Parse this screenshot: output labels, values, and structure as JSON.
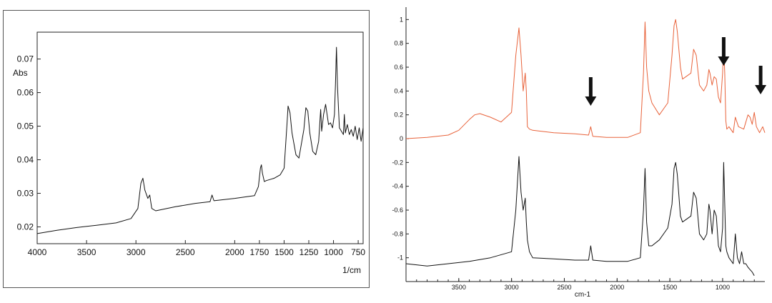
{
  "chart_data": [
    {
      "type": "line",
      "title": "",
      "xlabel": "1/cm",
      "ylabel": "Abs",
      "xlim": [
        4000,
        700
      ],
      "ylim": [
        0.015,
        0.078
      ],
      "x_reversed": true,
      "grid": false,
      "x_ticks": [
        "4000",
        "3500",
        "3000",
        "2500",
        "2000",
        "1750",
        "1500",
        "1250",
        "1000",
        "750"
      ],
      "x_tick_values": [
        4000,
        3500,
        3000,
        2500,
        2000,
        1750,
        1500,
        1250,
        1000,
        750
      ],
      "y_ticks": [
        "0.02",
        "0.03",
        "0.04",
        "0.05",
        "0.06",
        "0.07"
      ],
      "y_tick_values": [
        0.02,
        0.03,
        0.04,
        0.05,
        0.06,
        0.07
      ],
      "line_color": "#111111",
      "series": [
        {
          "x": [
            4000,
            3800,
            3600,
            3400,
            3200,
            3050,
            2980,
            2950,
            2930,
            2910,
            2880,
            2860,
            2840,
            2800,
            2600,
            2400,
            2250,
            2230,
            2210,
            2000,
            1800,
            1760,
            1740,
            1730,
            1720,
            1700,
            1680,
            1600,
            1540,
            1500,
            1470,
            1460,
            1440,
            1420,
            1380,
            1350,
            1300,
            1280,
            1260,
            1240,
            1210,
            1180,
            1150,
            1130,
            1120,
            1100,
            1080,
            1070,
            1050,
            1030,
            1010,
            990,
            980,
            970,
            960,
            940,
            920,
            900,
            890,
            880,
            860,
            840,
            820,
            800,
            780,
            760,
            740,
            720,
            700
          ],
          "y": [
            0.018,
            0.019,
            0.0198,
            0.0205,
            0.0212,
            0.0225,
            0.0255,
            0.033,
            0.0345,
            0.031,
            0.0285,
            0.0295,
            0.0255,
            0.0248,
            0.026,
            0.027,
            0.0275,
            0.0295,
            0.0278,
            0.0285,
            0.0293,
            0.032,
            0.0375,
            0.0385,
            0.036,
            0.0335,
            0.0338,
            0.0345,
            0.0355,
            0.0375,
            0.051,
            0.056,
            0.054,
            0.048,
            0.0415,
            0.0405,
            0.049,
            0.0555,
            0.0545,
            0.048,
            0.0425,
            0.0415,
            0.0455,
            0.055,
            0.0485,
            0.0535,
            0.0565,
            0.0545,
            0.0505,
            0.051,
            0.0495,
            0.0535,
            0.0625,
            0.0735,
            0.062,
            0.0495,
            0.0485,
            0.0475,
            0.0535,
            0.048,
            0.0505,
            0.0475,
            0.049,
            0.047,
            0.05,
            0.046,
            0.0495,
            0.0455,
            0.0495
          ]
        }
      ]
    },
    {
      "type": "line",
      "title": "",
      "xlabel": "cm-1",
      "ylabel": "",
      "xlim": [
        4000,
        600
      ],
      "ylim": [
        -1.2,
        1.05
      ],
      "x_reversed": true,
      "grid": false,
      "x_ticks": [
        "3500",
        "3000",
        "2500",
        "2000",
        "1500",
        "1000"
      ],
      "x_tick_values": [
        3500,
        3000,
        2500,
        2000,
        1500,
        1000
      ],
      "y_ticks": [
        "1",
        "0.8",
        "0.6",
        "0.4",
        "0.2",
        "0",
        "-0.2",
        "-0.4",
        "-0.6",
        "-0.8",
        "-1"
      ],
      "y_tick_values": [
        1,
        0.8,
        0.6,
        0.4,
        0.2,
        0,
        -0.2,
        -0.4,
        -0.6,
        -0.8,
        -1
      ],
      "annotations": [
        {
          "type": "arrow",
          "x": 2250
        },
        {
          "type": "arrow",
          "x": 990
        },
        {
          "type": "arrow",
          "x": 640
        }
      ],
      "series": [
        {
          "color": "#e8623a",
          "x": [
            4000,
            3800,
            3600,
            3500,
            3400,
            3350,
            3300,
            3200,
            3100,
            3000,
            2960,
            2930,
            2910,
            2890,
            2870,
            2860,
            2850,
            2830,
            2800,
            2600,
            2400,
            2270,
            2250,
            2230,
            2100,
            1900,
            1780,
            1750,
            1735,
            1720,
            1700,
            1670,
            1600,
            1520,
            1480,
            1460,
            1445,
            1430,
            1400,
            1380,
            1300,
            1275,
            1250,
            1220,
            1180,
            1150,
            1130,
            1120,
            1100,
            1080,
            1060,
            1040,
            1020,
            1000,
            990,
            980,
            970,
            960,
            940,
            900,
            880,
            850,
            800,
            760,
            740,
            720,
            700,
            680,
            650,
            620,
            600
          ],
          "y": [
            0.0,
            0.01,
            0.03,
            0.07,
            0.16,
            0.2,
            0.21,
            0.18,
            0.14,
            0.22,
            0.7,
            0.93,
            0.7,
            0.4,
            0.55,
            0.4,
            0.1,
            0.08,
            0.07,
            0.05,
            0.04,
            0.03,
            0.1,
            0.02,
            0.01,
            0.01,
            0.05,
            0.55,
            0.98,
            0.6,
            0.4,
            0.3,
            0.2,
            0.3,
            0.7,
            0.95,
            1.0,
            0.9,
            0.6,
            0.5,
            0.55,
            0.75,
            0.7,
            0.45,
            0.4,
            0.45,
            0.58,
            0.55,
            0.45,
            0.52,
            0.5,
            0.35,
            0.3,
            0.55,
            0.8,
            0.55,
            0.15,
            0.08,
            0.1,
            0.05,
            0.18,
            0.1,
            0.08,
            0.2,
            0.18,
            0.12,
            0.22,
            0.1,
            0.05,
            0.1,
            0.05
          ]
        },
        {
          "color": "#111111",
          "x": [
            4000,
            3800,
            3600,
            3400,
            3200,
            3000,
            2960,
            2930,
            2910,
            2890,
            2870,
            2860,
            2850,
            2830,
            2800,
            2600,
            2400,
            2270,
            2250,
            2230,
            2100,
            1900,
            1780,
            1750,
            1735,
            1720,
            1700,
            1670,
            1600,
            1520,
            1480,
            1460,
            1445,
            1430,
            1400,
            1380,
            1300,
            1275,
            1250,
            1220,
            1180,
            1150,
            1130,
            1120,
            1100,
            1080,
            1060,
            1040,
            1020,
            1000,
            990,
            980,
            970,
            960,
            940,
            900,
            880,
            860,
            840,
            820,
            800,
            780,
            760,
            740,
            720,
            700
          ],
          "y": [
            -1.05,
            -1.07,
            -1.05,
            -1.03,
            -1.0,
            -0.95,
            -0.6,
            -0.15,
            -0.45,
            -0.6,
            -0.5,
            -0.7,
            -0.85,
            -0.95,
            -1.0,
            -1.01,
            -1.02,
            -1.02,
            -0.9,
            -1.02,
            -1.03,
            -1.03,
            -1.0,
            -0.6,
            -0.25,
            -0.7,
            -0.9,
            -0.9,
            -0.85,
            -0.75,
            -0.55,
            -0.25,
            -0.2,
            -0.3,
            -0.65,
            -0.7,
            -0.65,
            -0.45,
            -0.5,
            -0.8,
            -0.85,
            -0.8,
            -0.55,
            -0.6,
            -0.8,
            -0.6,
            -0.65,
            -0.9,
            -0.95,
            -0.75,
            -0.2,
            -0.55,
            -0.9,
            -0.95,
            -1.0,
            -1.05,
            -0.8,
            -1.0,
            -1.05,
            -0.95,
            -1.05,
            -1.05,
            -1.08,
            -1.1,
            -1.12,
            -1.15
          ]
        }
      ]
    }
  ]
}
